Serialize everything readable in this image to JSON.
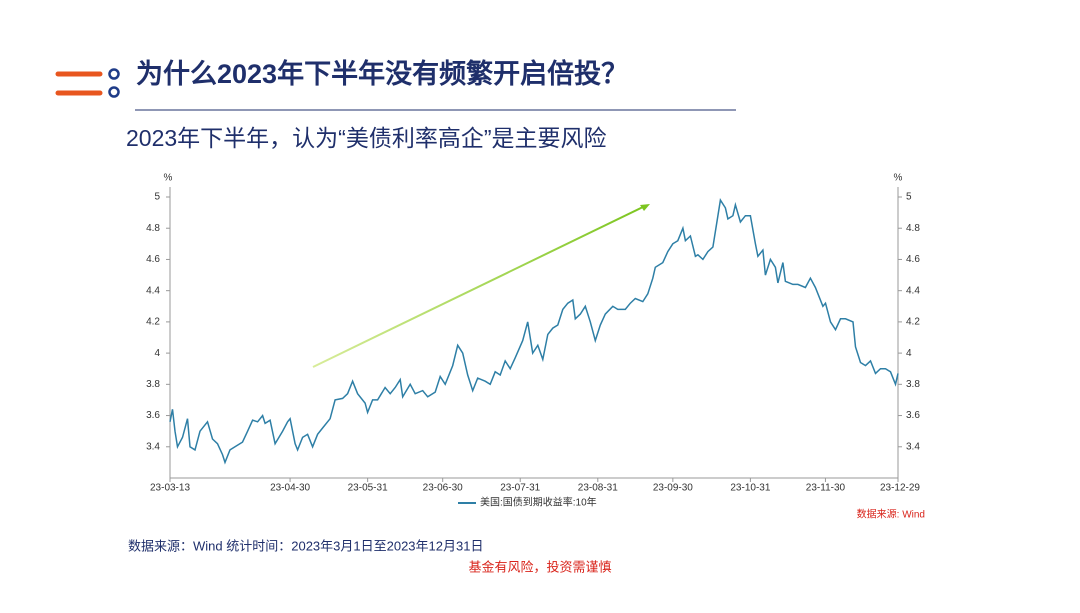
{
  "header": {
    "title": "为什么2023年下半年没有频繁开启倍投？",
    "subtitle": "2023年下半年，认为“美债利率高企”是主要风险"
  },
  "chart_data": {
    "type": "line",
    "ylabel": "%",
    "y2label": "%",
    "x": [
      "23-03-13",
      "23-03-14",
      "23-03-15",
      "23-03-16",
      "23-03-18",
      "23-03-20",
      "23-03-21",
      "23-03-23",
      "23-03-25",
      "23-03-28",
      "23-03-30",
      "23-04-01",
      "23-04-03",
      "23-04-04",
      "23-04-06",
      "23-04-08",
      "23-04-11",
      "23-04-13",
      "23-04-15",
      "23-04-17",
      "23-04-19",
      "23-04-20",
      "23-04-22",
      "23-04-24",
      "23-04-27",
      "23-04-29",
      "23-04-30",
      "23-05-02",
      "23-05-03",
      "23-05-05",
      "23-05-07",
      "23-05-09",
      "23-05-11",
      "23-05-13",
      "23-05-16",
      "23-05-18",
      "23-05-21",
      "23-05-23",
      "23-05-25",
      "23-05-27",
      "23-05-30",
      "23-05-31",
      "23-06-02",
      "23-06-04",
      "23-06-07",
      "23-06-09",
      "23-06-11",
      "23-06-13",
      "23-06-14",
      "23-06-17",
      "23-06-19",
      "23-06-22",
      "23-06-24",
      "23-06-27",
      "23-06-29",
      "23-07-01",
      "23-07-04",
      "23-07-06",
      "23-07-08",
      "23-07-10",
      "23-07-12",
      "23-07-14",
      "23-07-17",
      "23-07-19",
      "23-07-21",
      "23-07-23",
      "23-07-25",
      "23-07-27",
      "23-07-29",
      "23-08-01",
      "23-08-03",
      "23-08-05",
      "23-08-07",
      "23-08-09",
      "23-08-11",
      "23-08-13",
      "23-08-15",
      "23-08-17",
      "23-08-19",
      "23-08-21",
      "23-08-22",
      "23-08-24",
      "23-08-26",
      "23-08-28",
      "23-08-30",
      "23-09-01",
      "23-09-03",
      "23-09-06",
      "23-09-08",
      "23-09-11",
      "23-09-13",
      "23-09-15",
      "23-09-18",
      "23-09-20",
      "23-09-22",
      "23-09-23",
      "23-09-26",
      "23-09-28",
      "23-09-30",
      "23-10-02",
      "23-10-04",
      "23-10-05",
      "23-10-07",
      "23-10-09",
      "23-10-10",
      "23-10-12",
      "23-10-14",
      "23-10-16",
      "23-10-18",
      "23-10-19",
      "23-10-21",
      "23-10-22",
      "23-10-24",
      "23-10-25",
      "23-10-27",
      "23-10-29",
      "23-10-31",
      "23-11-02",
      "23-11-03",
      "23-11-05",
      "23-11-06",
      "23-11-08",
      "23-11-10",
      "23-11-11",
      "23-11-13",
      "23-11-14",
      "23-11-17",
      "23-11-19",
      "23-11-22",
      "23-11-24",
      "23-11-26",
      "23-11-29",
      "23-11-30",
      "23-12-02",
      "23-12-04",
      "23-12-06",
      "23-12-08",
      "23-12-11",
      "23-12-12",
      "23-12-14",
      "23-12-16",
      "23-12-18",
      "23-12-20",
      "23-12-22",
      "23-12-24",
      "23-12-26",
      "23-12-28",
      "23-12-29"
    ],
    "series": [
      {
        "name": "美国:国债到期收益率:10年",
        "color": "#2e7fa6",
        "values": [
          3.56,
          3.64,
          3.5,
          3.4,
          3.46,
          3.58,
          3.4,
          3.38,
          3.5,
          3.56,
          3.45,
          3.42,
          3.35,
          3.3,
          3.38,
          3.4,
          3.43,
          3.5,
          3.57,
          3.56,
          3.6,
          3.55,
          3.57,
          3.42,
          3.5,
          3.56,
          3.58,
          3.42,
          3.38,
          3.46,
          3.48,
          3.4,
          3.48,
          3.52,
          3.58,
          3.7,
          3.71,
          3.74,
          3.82,
          3.74,
          3.68,
          3.62,
          3.7,
          3.7,
          3.78,
          3.74,
          3.78,
          3.83,
          3.72,
          3.8,
          3.74,
          3.76,
          3.72,
          3.75,
          3.85,
          3.8,
          3.92,
          4.05,
          4.0,
          3.86,
          3.76,
          3.84,
          3.82,
          3.8,
          3.88,
          3.86,
          3.95,
          3.9,
          3.97,
          4.08,
          4.2,
          4.0,
          4.05,
          3.96,
          4.12,
          4.16,
          4.18,
          4.28,
          4.32,
          4.34,
          4.22,
          4.25,
          4.3,
          4.2,
          4.08,
          4.18,
          4.25,
          4.3,
          4.28,
          4.28,
          4.32,
          4.35,
          4.33,
          4.38,
          4.48,
          4.55,
          4.58,
          4.65,
          4.7,
          4.72,
          4.8,
          4.72,
          4.75,
          4.62,
          4.63,
          4.6,
          4.65,
          4.68,
          4.88,
          4.98,
          4.93,
          4.86,
          4.88,
          4.95,
          4.84,
          4.88,
          4.88,
          4.7,
          4.62,
          4.66,
          4.5,
          4.6,
          4.55,
          4.45,
          4.58,
          4.46,
          4.44,
          4.44,
          4.42,
          4.48,
          4.42,
          4.3,
          4.32,
          4.2,
          4.15,
          4.22,
          4.22,
          4.2,
          4.04,
          3.94,
          3.92,
          3.95,
          3.87,
          3.9,
          3.9,
          3.88,
          3.8,
          3.87
        ]
      }
    ],
    "xlim": [
      "23-03-13",
      "23-12-29"
    ],
    "xticks": [
      "23-03-13",
      "23-04-30",
      "23-05-31",
      "23-06-30",
      "23-07-31",
      "23-08-31",
      "23-09-30",
      "23-10-31",
      "23-11-30",
      "23-12-29"
    ],
    "ylim": [
      3.2,
      5
    ],
    "yticks": [
      3.4,
      3.6,
      3.8,
      4,
      4.2,
      4.4,
      4.6,
      4.8,
      5
    ],
    "y2lim": [
      3.2,
      5
    ],
    "y2ticks": [
      3.4,
      3.6,
      3.8,
      4,
      4.2,
      4.4,
      4.6,
      4.8,
      5
    ],
    "source": "数据来源: Wind"
  },
  "footer": {
    "note": "数据来源：Wind 统计时间：2023年3月1日至2023年12月31日",
    "risk": "基金有风险，投资需谨慎"
  }
}
